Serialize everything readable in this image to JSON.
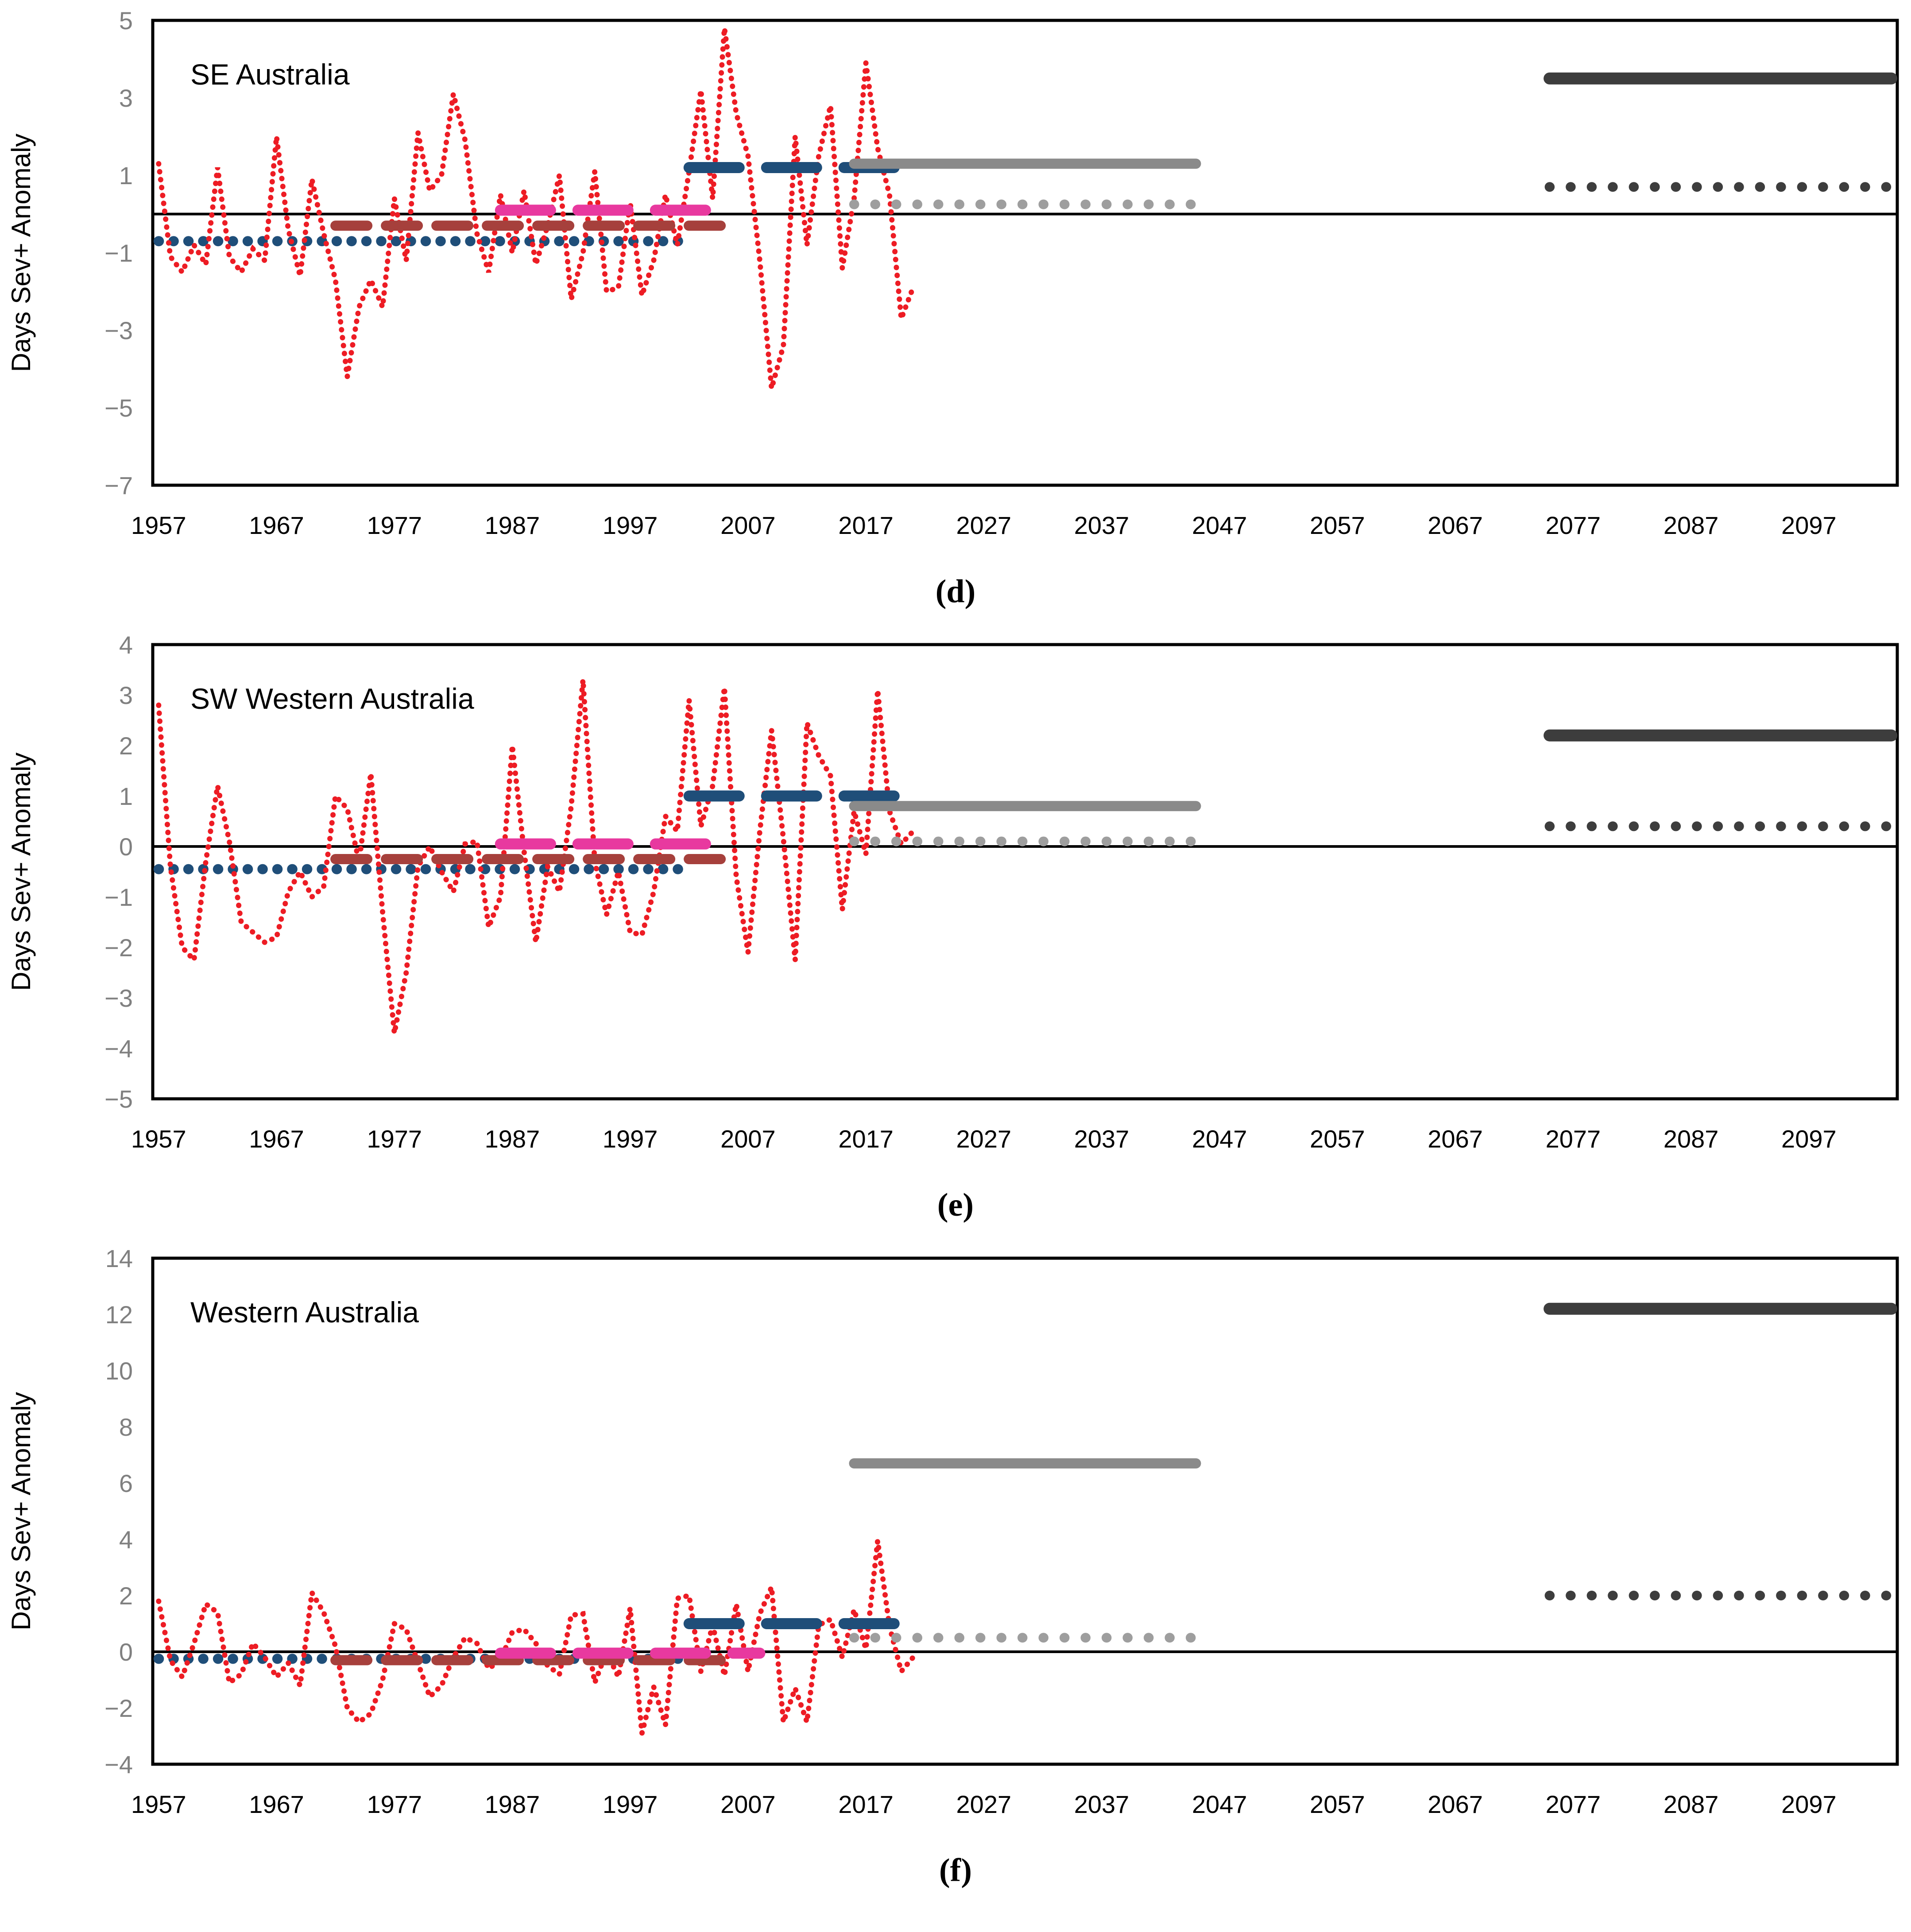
{
  "figure": {
    "background": "#ffffff",
    "ylabel": "Days Sev+ Anomaly",
    "axis_tick_color": "#808080",
    "x_tick_color": "#000000",
    "title_color": "#000000"
  },
  "chart_data": [
    {
      "type": "line",
      "title": "SE Australia",
      "panel_label": "(d)",
      "ylabel": "Days Sev+ Anomaly",
      "xlim": [
        1956.5,
        2104.5
      ],
      "ylim": [
        -7,
        5
      ],
      "yticks": [
        5,
        3,
        1,
        -1,
        -3,
        -5,
        -7
      ],
      "xticks": [
        1957,
        1967,
        1977,
        1987,
        1997,
        2007,
        2017,
        2027,
        2037,
        2047,
        2057,
        2067,
        2077,
        2087,
        2097
      ],
      "grid": false,
      "legend": false,
      "series": [
        {
          "name": "baseline-obs-mean",
          "style": "dots",
          "color": "#1F4E79",
          "value": -0.7,
          "x": [
            1957,
            2002
          ]
        },
        {
          "name": "annual-observed",
          "style": "dots-small",
          "color": "#ED1C24",
          "x_start": 1957,
          "values": [
            1.3,
            -1.1,
            -1.5,
            -0.8,
            -1.3,
            1.2,
            -1.1,
            -1.5,
            -0.9,
            -1.2,
            2.0,
            -0.4,
            -1.6,
            0.9,
            -0.5,
            -1.7,
            -4.2,
            -2.4,
            -1.7,
            -2.4,
            0.4,
            -1.2,
            2.1,
            0.6,
            1.0,
            3.1,
            1.9,
            -0.5,
            -1.5,
            0.5,
            -1.0,
            0.6,
            -1.3,
            -0.3,
            1.0,
            -2.2,
            -1.0,
            1.1,
            -2.0,
            -1.9,
            0.3,
            -2.1,
            -1.2,
            0.5,
            -0.8,
            1.1,
            3.2,
            0.4,
            4.8,
            2.6,
            1.5,
            -1.2,
            -4.5,
            -3.4,
            2.0,
            -0.8,
            1.5,
            2.8,
            -1.4,
            0.4,
            3.9,
            1.7,
            0.5,
            -2.7,
            -1.9
          ]
        },
        {
          "name": "hist-model-mean-1972-2006",
          "style": "dash",
          "color": "#A6403C",
          "value": -0.3,
          "x": [
            1972,
            2006
          ]
        },
        {
          "name": "hist-model-mean-1986-2004",
          "style": "dash-long",
          "color": "#E8399F",
          "value": 0.1,
          "x": [
            1986,
            2004
          ]
        },
        {
          "name": "current-period-mean-2002-2021",
          "style": "dash-long",
          "color": "#1F4E79",
          "value": 1.2,
          "x": [
            2002,
            2021
          ]
        },
        {
          "name": "mid-century-mean-solid",
          "style": "solid",
          "color": "#8A8A8A",
          "value": 1.3,
          "x": [
            2016,
            2045
          ]
        },
        {
          "name": "mid-century-mean-dotted",
          "style": "dots-mid",
          "color": "#9E9E9E",
          "value": 0.25,
          "x": [
            2016,
            2045
          ]
        },
        {
          "name": "late-century-mean-solid",
          "style": "solid-thick",
          "color": "#3D3D3D",
          "value": 3.5,
          "x": [
            2075,
            2104
          ]
        },
        {
          "name": "late-century-mean-dotted",
          "style": "dots-mid",
          "color": "#3D3D3D",
          "value": 0.7,
          "x": [
            2075,
            2104
          ]
        }
      ]
    },
    {
      "type": "line",
      "title": "SW Western Australia",
      "panel_label": "(e)",
      "ylabel": "Days Sev+ Anomaly",
      "xlim": [
        1956.5,
        2104.5
      ],
      "ylim": [
        -5,
        4
      ],
      "yticks": [
        4,
        3,
        2,
        1,
        0,
        -1,
        -2,
        -3,
        -4,
        -5
      ],
      "xticks": [
        1957,
        1967,
        1977,
        1987,
        1997,
        2007,
        2017,
        2027,
        2037,
        2047,
        2057,
        2067,
        2077,
        2087,
        2097
      ],
      "grid": false,
      "legend": false,
      "series": [
        {
          "name": "baseline-obs-mean",
          "style": "dots",
          "color": "#1F4E79",
          "value": -0.45,
          "x": [
            1957,
            2002
          ]
        },
        {
          "name": "annual-observed",
          "style": "dots-small",
          "color": "#ED1C24",
          "x_start": 1957,
          "values": [
            2.8,
            -0.4,
            -2.0,
            -2.25,
            -0.3,
            1.2,
            0.1,
            -1.5,
            -1.7,
            -1.9,
            -1.8,
            -0.9,
            -0.5,
            -1.0,
            -0.8,
            1.0,
            0.75,
            -0.3,
            1.45,
            -1.3,
            -3.7,
            -2.5,
            -0.4,
            0.0,
            -0.5,
            -0.9,
            0.05,
            0.1,
            -1.6,
            -1.0,
            2.0,
            -0.1,
            -1.9,
            -0.4,
            -0.9,
            0.8,
            3.3,
            -0.3,
            -1.35,
            -0.5,
            -1.7,
            -1.75,
            -0.9,
            0.6,
            0.3,
            2.9,
            0.4,
            1.2,
            3.15,
            -0.6,
            -2.1,
            0.3,
            2.3,
            0.15,
            -2.25,
            2.45,
            1.8,
            1.4,
            -1.25,
            0.7,
            -0.15,
            3.1,
            0.7,
            0.05,
            0.3
          ]
        },
        {
          "name": "hist-model-mean-1972-2006",
          "style": "dash",
          "color": "#A6403C",
          "value": -0.25,
          "x": [
            1972,
            2006
          ]
        },
        {
          "name": "hist-model-mean-1986-2004",
          "style": "dash-long",
          "color": "#E8399F",
          "value": 0.05,
          "x": [
            1986,
            2004
          ]
        },
        {
          "name": "current-period-mean-2002-2021",
          "style": "dash-long",
          "color": "#1F4E79",
          "value": 1.0,
          "x": [
            2002,
            2021
          ]
        },
        {
          "name": "mid-century-mean-solid",
          "style": "solid",
          "color": "#8A8A8A",
          "value": 0.8,
          "x": [
            2016,
            2045
          ]
        },
        {
          "name": "mid-century-mean-dotted",
          "style": "dots-mid",
          "color": "#9E9E9E",
          "value": 0.1,
          "x": [
            2016,
            2045
          ]
        },
        {
          "name": "late-century-mean-solid",
          "style": "solid-thick",
          "color": "#3D3D3D",
          "value": 2.2,
          "x": [
            2075,
            2104
          ]
        },
        {
          "name": "late-century-mean-dotted",
          "style": "dots-mid",
          "color": "#3D3D3D",
          "value": 0.4,
          "x": [
            2075,
            2104
          ]
        }
      ]
    },
    {
      "type": "line",
      "title": "Western Australia",
      "panel_label": "(f)",
      "ylabel": "Days Sev+ Anomaly",
      "xlim": [
        1956.5,
        2104.5
      ],
      "ylim": [
        -4,
        14
      ],
      "yticks": [
        14,
        12,
        10,
        8,
        6,
        4,
        2,
        0,
        -2,
        -4
      ],
      "xticks": [
        1957,
        1967,
        1977,
        1987,
        1997,
        2007,
        2017,
        2027,
        2037,
        2047,
        2057,
        2067,
        2077,
        2087,
        2097
      ],
      "grid": false,
      "legend": false,
      "series": [
        {
          "name": "baseline-obs-mean",
          "style": "dots",
          "color": "#1F4E79",
          "value": -0.25,
          "x": [
            1957,
            2002
          ]
        },
        {
          "name": "annual-observed",
          "style": "dots-small",
          "color": "#ED1C24",
          "x_start": 1957,
          "values": [
            1.8,
            -0.3,
            -0.9,
            0.3,
            1.7,
            1.4,
            -1.1,
            -0.8,
            0.3,
            -0.2,
            -0.9,
            -0.4,
            -1.2,
            2.1,
            1.4,
            0.2,
            -2.0,
            -2.5,
            -2.2,
            -1.0,
            1.0,
            0.8,
            -0.4,
            -1.6,
            -1.2,
            -0.2,
            0.5,
            0.3,
            -0.6,
            -0.3,
            0.7,
            0.8,
            0.3,
            -0.5,
            -0.8,
            1.3,
            1.35,
            -1.1,
            0.0,
            -0.9,
            1.55,
            -2.9,
            -1.25,
            -2.6,
            1.9,
            2.0,
            -0.7,
            0.95,
            -0.85,
            1.7,
            -0.7,
            1.35,
            2.3,
            -2.5,
            -1.3,
            -2.5,
            0.95,
            1.15,
            -0.2,
            1.5,
            0.1,
            3.95,
            0.9,
            -0.7,
            -0.2
          ]
        },
        {
          "name": "hist-model-mean-1972-2006",
          "style": "dash",
          "color": "#A6403C",
          "value": -0.3,
          "x": [
            1972,
            2006
          ]
        },
        {
          "name": "hist-model-mean-1986-2008",
          "style": "dash-long",
          "color": "#E8399F",
          "value": -0.05,
          "x": [
            1986,
            2008
          ]
        },
        {
          "name": "current-period-mean-2002-2021",
          "style": "dash-long",
          "color": "#1F4E79",
          "value": 1.0,
          "x": [
            2002,
            2021
          ]
        },
        {
          "name": "mid-century-mean-solid",
          "style": "solid",
          "color": "#8A8A8A",
          "value": 6.7,
          "x": [
            2016,
            2045
          ]
        },
        {
          "name": "mid-century-mean-dotted",
          "style": "dots-mid",
          "color": "#9E9E9E",
          "value": 0.5,
          "x": [
            2016,
            2045
          ]
        },
        {
          "name": "late-century-mean-solid",
          "style": "solid-thick",
          "color": "#3D3D3D",
          "value": 12.2,
          "x": [
            2075,
            2104
          ]
        },
        {
          "name": "late-century-mean-dotted",
          "style": "dots-mid",
          "color": "#3D3D3D",
          "value": 2.0,
          "x": [
            2075,
            2104
          ]
        }
      ]
    }
  ]
}
